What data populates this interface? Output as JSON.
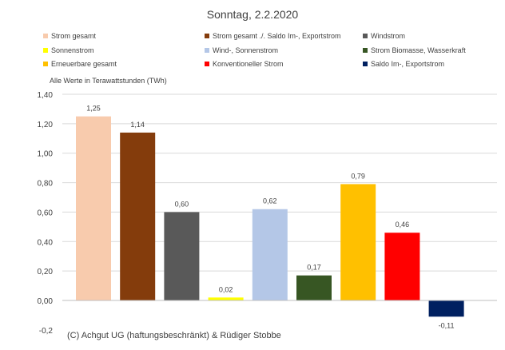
{
  "chart_data": {
    "type": "bar",
    "title": "Sonntag, 2.2.2020",
    "note": "Alle Werte in Terawattstunden (TWh)",
    "credit": "(C) Achgut UG (haftungsbeschränkt) & Rüdiger Stobbe",
    "ylim": [
      -0.2,
      1.4
    ],
    "yticks": [
      -0.2,
      0.0,
      0.2,
      0.4,
      0.6,
      0.8,
      1.0,
      1.2,
      1.4
    ],
    "ytick_labels": [
      "-0,2",
      "0,00",
      "0,20",
      "0,40",
      "0,60",
      "0,80",
      "1,00",
      "1,20",
      "1,40"
    ],
    "grid": true,
    "legend_position": "top",
    "series": [
      {
        "name": "Strom gesamt",
        "value": 1.25,
        "label": "1,25",
        "color": "#F8CBAD"
      },
      {
        "name": "Strom gesamt ./. Saldo Im-, Exportstrom",
        "value": 1.14,
        "label": "1,14",
        "color": "#843C0C"
      },
      {
        "name": "Windstrom",
        "value": 0.6,
        "label": "0,60",
        "color": "#595959"
      },
      {
        "name": "Sonnenstrom",
        "value": 0.02,
        "label": "0,02",
        "color": "#FFFF00"
      },
      {
        "name": "Wind-, Sonnenstrom",
        "value": 0.62,
        "label": "0,62",
        "color": "#B4C7E7"
      },
      {
        "name": "Strom Biomasse, Wasserkraft",
        "value": 0.17,
        "label": "0,17",
        "color": "#375623"
      },
      {
        "name": "Erneuerbare gesamt",
        "value": 0.79,
        "label": "0,79",
        "color": "#FFC000"
      },
      {
        "name": "Konventioneller Strom",
        "value": 0.46,
        "label": "0,46",
        "color": "#FF0000"
      },
      {
        "name": "Saldo Im-, Exportstrom",
        "value": -0.11,
        "label": "-0,11",
        "color": "#002060"
      }
    ]
  }
}
